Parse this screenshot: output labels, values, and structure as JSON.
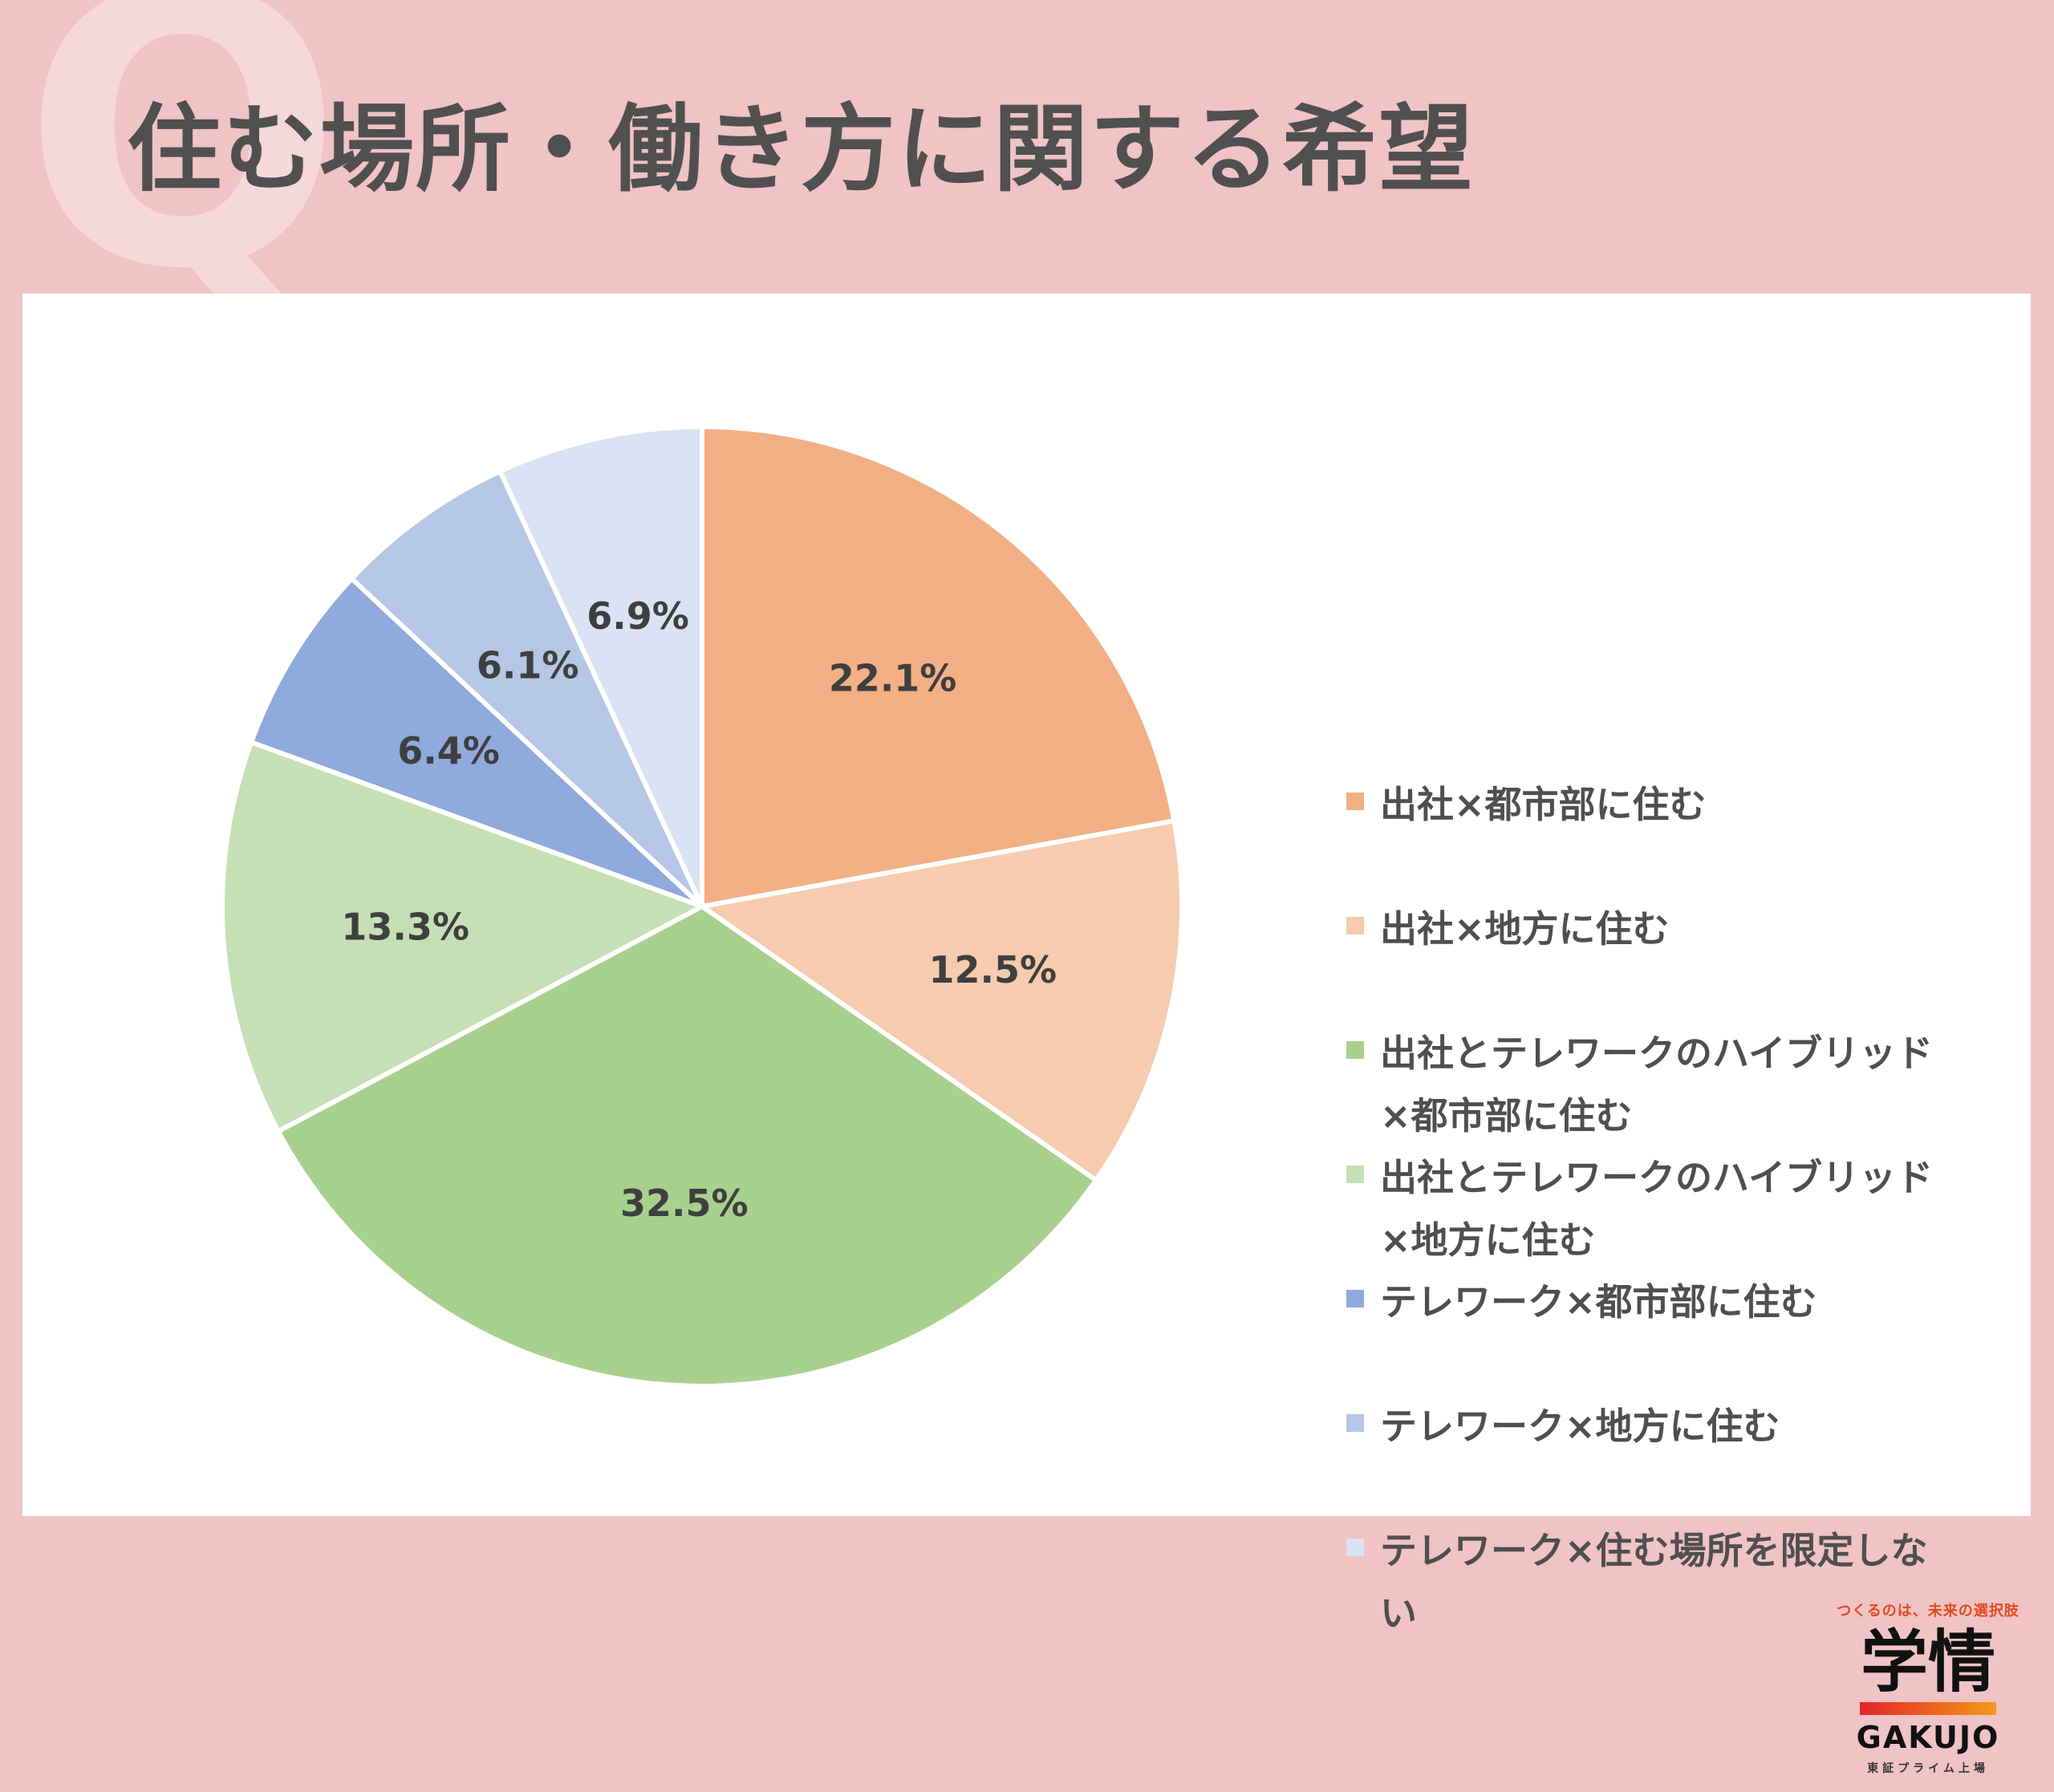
{
  "header": {
    "badge": "Q",
    "title": "住む場所・働き方に関する希望"
  },
  "chart_data": {
    "type": "pie",
    "title": "",
    "start_angle_deg": 0,
    "direction": "clockwise",
    "legend_position": "right",
    "slices": [
      {
        "label": "出社×都市部に住む",
        "value": 22.1,
        "value_label": "22.1%",
        "color": "#f3b084"
      },
      {
        "label": "出社×地方に住む",
        "value": 12.5,
        "value_label": "12.5%",
        "color": "#f6cbae"
      },
      {
        "label": "出社とテレワークのハイブリッド×都市部に住む",
        "value": 32.5,
        "value_label": "32.5%",
        "color": "#a9d18e"
      },
      {
        "label": "出社とテレワークのハイブリッド×地方に住む",
        "value": 13.3,
        "value_label": "13.3%",
        "color": "#c5e0b4"
      },
      {
        "label": "テレワーク×都市部に住む",
        "value": 6.4,
        "value_label": "6.4%",
        "color": "#8faadc"
      },
      {
        "label": "テレワーク×地方に住む",
        "value": 6.1,
        "value_label": "6.1%",
        "color": "#b4c7e7"
      },
      {
        "label": "テレワーク×住む場所を限定しない",
        "value": 6.9,
        "value_label": "6.9%",
        "color": "#dae3f3"
      }
    ]
  },
  "logo": {
    "tagline": "つくるのは、未来の選択肢",
    "kanji": "学情",
    "name": "GAKUJO",
    "listing": "東証プライム上場"
  },
  "colors": {
    "background": "#f0c3c5",
    "panel": "#ffffff",
    "title_text": "#505050"
  }
}
